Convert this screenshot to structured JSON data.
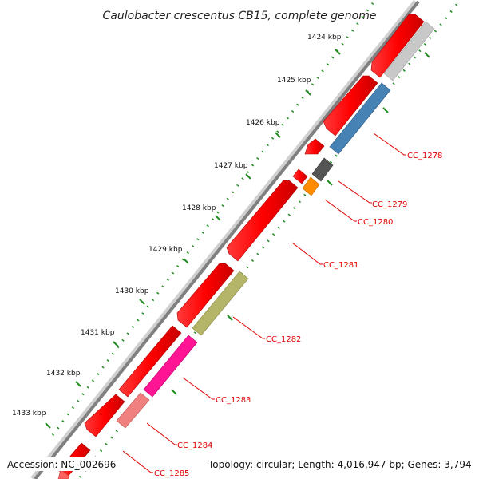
{
  "title": "Caulobacter crescentus CB15, complete genome",
  "kbp_ticks": [
    "1424 kbp",
    "1425 kbp",
    "1426 kbp",
    "1427 kbp",
    "1428 kbp",
    "1429 kbp",
    "1430 kbp",
    "1431 kbp",
    "1432 kbp",
    "1433 kbp"
  ],
  "gene_labels": [
    "CC_1278",
    "CC_1279",
    "CC_1280",
    "CC_1281",
    "CC_1282",
    "CC_1283",
    "CC_1284",
    "CC_1285"
  ],
  "footer": {
    "accession": "Accession: NC_002696",
    "summary": "Topology: circular; Length: 4,016,947 bp; Genes: 3,794"
  },
  "colors": {
    "cds_track": "#ff0000",
    "backbone": "#808080",
    "tick_marks": "#228b22",
    "label_text": "#e00000",
    "gene_colors": [
      "#4682b4",
      "#555555",
      "#ff8c00",
      "#ff0000",
      "#b5b56a",
      "#ff1493",
      "#f08080",
      "#ff0000"
    ]
  }
}
